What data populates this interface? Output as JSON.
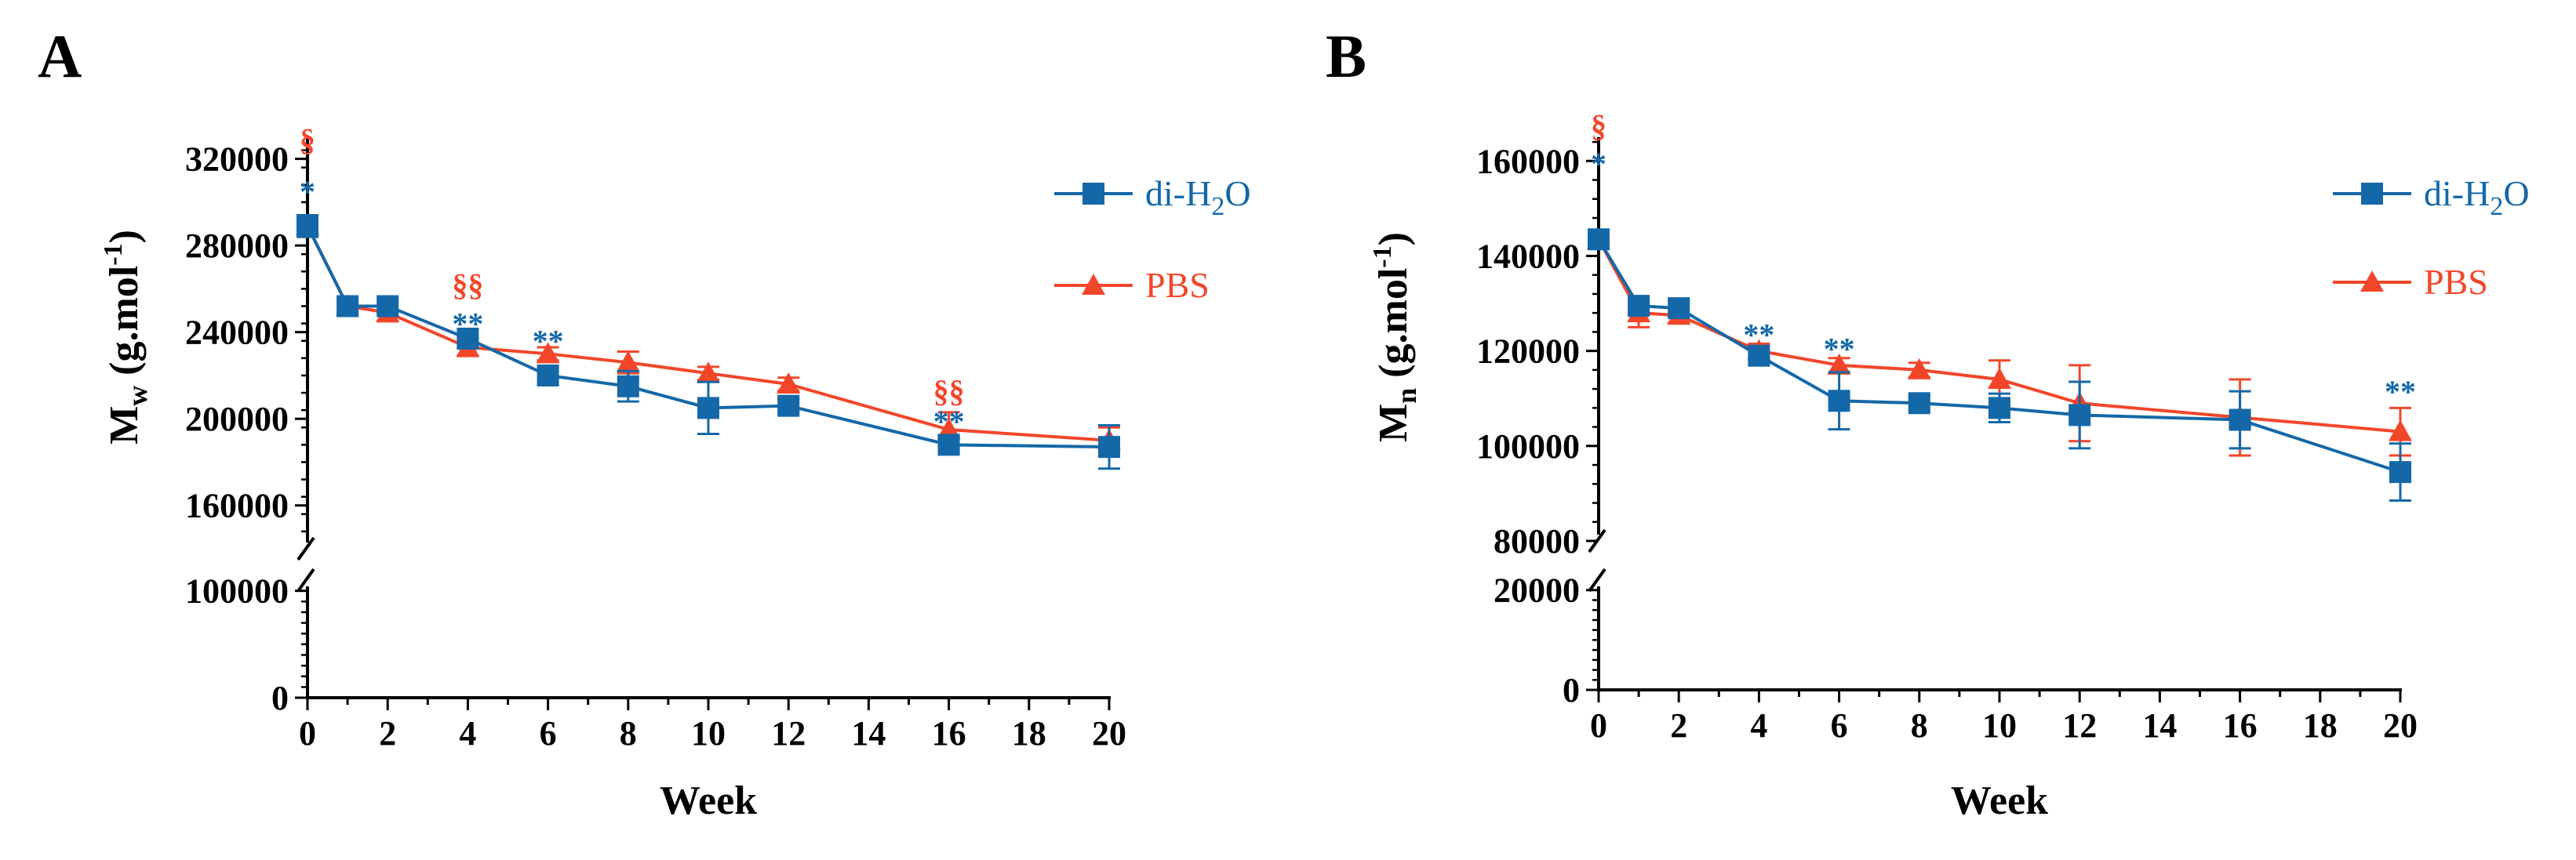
{
  "colors": {
    "diH2O": "#1468a8",
    "PBS": "#f2462a",
    "axis": "#000000"
  },
  "chart_data": [
    {
      "type": "line",
      "panel_label": "A",
      "xlabel": "Week",
      "ylabel": "Mw (g.mol-1)",
      "ylabel_parts": {
        "base": "M",
        "sub": "w",
        "mid": " (g.mol",
        "sup": "-1",
        "end": ")"
      },
      "xlim": [
        0,
        20
      ],
      "x_ticks": [
        "0",
        "2",
        "4",
        "6",
        "8",
        "10",
        "12",
        "14",
        "16",
        "18",
        "20"
      ],
      "broken_y_axis": true,
      "y_upper_range": [
        140000,
        330000
      ],
      "y_upper_ticks": [
        "160000",
        "200000",
        "240000",
        "280000",
        "320000"
      ],
      "y_lower_range": [
        0,
        110000
      ],
      "y_lower_ticks": [
        "0",
        "100000"
      ],
      "series": [
        {
          "name": "di-H2O",
          "marker": "square",
          "x": [
            0,
            1,
            2,
            4,
            6,
            8,
            10,
            12,
            16,
            20
          ],
          "y": [
            289000,
            252000,
            252000,
            237000,
            220000,
            215000,
            205000,
            206000,
            188000,
            187000
          ],
          "err": [
            5000,
            3000,
            3000,
            4000,
            4000,
            7000,
            12000,
            3000,
            4000,
            10000
          ]
        },
        {
          "name": "PBS",
          "marker": "triangle",
          "x": [
            0,
            1,
            2,
            4,
            6,
            8,
            10,
            12,
            16,
            20
          ],
          "y": [
            289000,
            252000,
            249000,
            233000,
            230000,
            226000,
            221000,
            216000,
            195000,
            190000
          ],
          "err": [
            5000,
            3000,
            4000,
            4000,
            3000,
            5000,
            3000,
            3000,
            8000,
            6000
          ]
        }
      ],
      "annotations": [
        {
          "x": 0,
          "y": 329000,
          "text": "§",
          "series": "PBS"
        },
        {
          "x": 0,
          "y": 305000,
          "text": "*",
          "series": "di-H2O"
        },
        {
          "x": 4,
          "y": 262000,
          "text": "§§",
          "series": "PBS"
        },
        {
          "x": 4,
          "y": 244000,
          "text": "**",
          "series": "di-H2O"
        },
        {
          "x": 6,
          "y": 236000,
          "text": "**",
          "series": "di-H2O"
        },
        {
          "x": 16,
          "y": 213000,
          "text": "§§",
          "series": "PBS"
        },
        {
          "x": 16,
          "y": 199000,
          "text": "**",
          "series": "di-H2O"
        }
      ],
      "legend": [
        {
          "label_base": "di-H",
          "label_sub": "2",
          "label_end": "O",
          "series": "di-H2O"
        },
        {
          "label_base": "PBS",
          "label_sub": "",
          "label_end": "",
          "series": "PBS"
        }
      ]
    },
    {
      "type": "line",
      "panel_label": "B",
      "xlabel": "Week",
      "ylabel": "Mn (g.mol-1)",
      "ylabel_parts": {
        "base": "M",
        "sub": "n",
        "mid": " (g.mol",
        "sup": "-1",
        "end": ")"
      },
      "xlim": [
        0,
        20
      ],
      "x_ticks": [
        "0",
        "2",
        "4",
        "6",
        "8",
        "10",
        "12",
        "14",
        "16",
        "18",
        "20"
      ],
      "broken_y_axis": true,
      "y_upper_range": [
        80000,
        165000
      ],
      "y_upper_ticks": [
        "80000",
        "100000",
        "120000",
        "140000",
        "160000"
      ],
      "y_lower_range": [
        0,
        22000
      ],
      "y_lower_ticks": [
        "0",
        "20000"
      ],
      "series": [
        {
          "name": "di-H2O",
          "marker": "square",
          "x": [
            0,
            1,
            2,
            4,
            6,
            8,
            10,
            12,
            16,
            20
          ],
          "y": [
            143500,
            129500,
            129000,
            119000,
            109500,
            109000,
            108000,
            106500,
            105500,
            94500
          ],
          "err": [
            1500,
            2000,
            1500,
            2000,
            6000,
            1500,
            3000,
            7000,
            6000,
            6000
          ]
        },
        {
          "name": "PBS",
          "marker": "triangle",
          "x": [
            0,
            1,
            2,
            4,
            6,
            8,
            10,
            12,
            16,
            20
          ],
          "y": [
            143500,
            128000,
            127500,
            120000,
            117000,
            116000,
            114000,
            109000,
            106000,
            103000
          ],
          "err": [
            1500,
            3000,
            1500,
            1500,
            1500,
            1500,
            4000,
            8000,
            8000,
            5000
          ]
        }
      ],
      "annotations": [
        {
          "x": 0,
          "y": 167500,
          "text": "§",
          "series": "PBS"
        },
        {
          "x": 0,
          "y": 159500,
          "text": "*",
          "series": "di-H2O"
        },
        {
          "x": 4,
          "y": 123500,
          "text": "**",
          "series": "di-H2O"
        },
        {
          "x": 6,
          "y": 120500,
          "text": "**",
          "series": "di-H2O"
        },
        {
          "x": 20,
          "y": 111500,
          "text": "**",
          "series": "di-H2O"
        }
      ],
      "legend": [
        {
          "label_base": "di-H",
          "label_sub": "2",
          "label_end": "O",
          "series": "di-H2O"
        },
        {
          "label_base": "PBS",
          "label_sub": "",
          "label_end": "",
          "series": "PBS"
        }
      ]
    }
  ]
}
